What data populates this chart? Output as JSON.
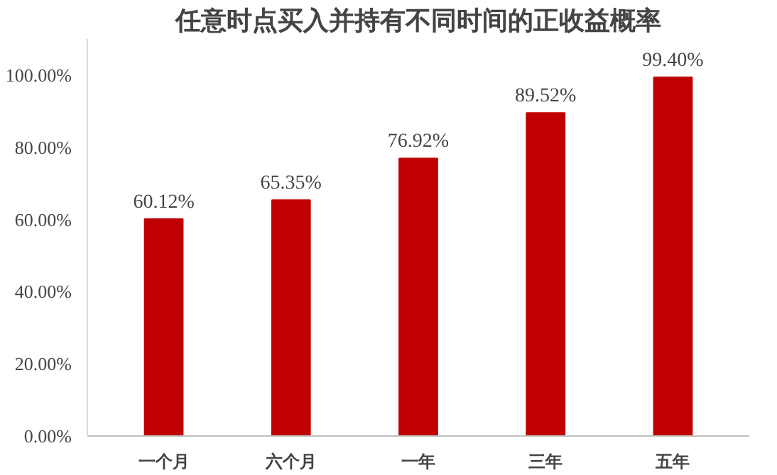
{
  "chart_data": {
    "type": "bar",
    "title": "任意时点买入并持有不同时间的正收益概率",
    "categories": [
      "一个月",
      "六个月",
      "一年",
      "三年",
      "五年"
    ],
    "values": [
      60.12,
      65.35,
      76.92,
      89.52,
      99.4
    ],
    "value_labels": [
      "60.12%",
      "65.35%",
      "76.92%",
      "89.52%",
      "99.40%"
    ],
    "color": "#c00000",
    "ylim": [
      0,
      110
    ],
    "yticks": [
      {
        "value": 0,
        "label": "0.00%"
      },
      {
        "value": 20,
        "label": "20.00%"
      },
      {
        "value": 40,
        "label": "40.00%"
      },
      {
        "value": 60,
        "label": "60.00%"
      },
      {
        "value": 80,
        "label": "80.00%"
      },
      {
        "value": 100,
        "label": "100.00%"
      }
    ],
    "grid": false
  }
}
